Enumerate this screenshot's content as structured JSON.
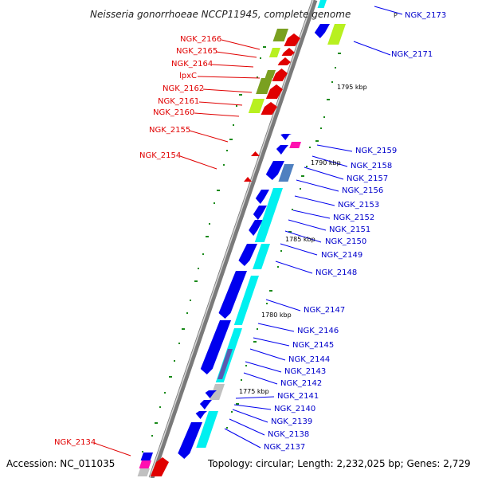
{
  "title": "Neisseria gonorrhoeae NCCP11945, complete genome",
  "title_marker": "P",
  "footer": {
    "accession": "Accession: NC_011035",
    "topology": "Topology: circular; Length: 2,232,025 bp; Genes: 2,729"
  },
  "kbp_ticks": [
    "1795 kbp",
    "1790 kbp",
    "1785 kbp",
    "1780 kbp",
    "1775 kbp"
  ],
  "genes_left": [
    "NGK_2166",
    "NGK_2165",
    "NGK_2164",
    "lpxC",
    "NGK_2162",
    "NGK_2161",
    "NGK_2160",
    "NGK_2155",
    "NGK_2154",
    "NGK_2134"
  ],
  "genes_right": [
    "NGK_2173",
    "NGK_2171",
    "NGK_2159",
    "NGK_2158",
    "NGK_2157",
    "NGK_2156",
    "NGK_2153",
    "NGK_2152",
    "NGK_2151",
    "NGK_2150",
    "NGK_2149",
    "NGK_2148",
    "NGK_2147",
    "NGK_2146",
    "NGK_2145",
    "NGK_2144",
    "NGK_2143",
    "NGK_2142",
    "NGK_2141",
    "NGK_2140",
    "NGK_2139",
    "NGK_2138",
    "NGK_2137"
  ],
  "colors": {
    "forward_gene": "#e00000",
    "reverse_gene": "#0000ee",
    "cds_green": "#7aa020",
    "cds_lightgreen": "#b8f020",
    "cds_cyan": "#00f0f0",
    "cds_steel": "#4f80c0",
    "cds_magenta": "#ff10b0",
    "cds_gray": "#c0c0c0",
    "backbone": "#808080"
  }
}
